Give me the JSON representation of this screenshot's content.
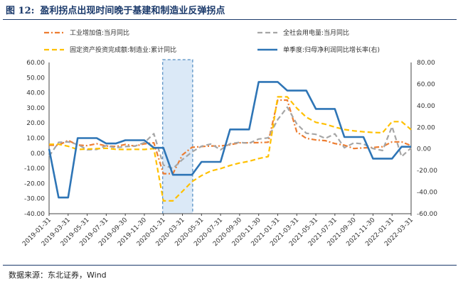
{
  "figure": {
    "label": "图 12:",
    "title": "盈利拐点出现时间晚于基建和制造业反弹拐点",
    "source": "数据来源：东北证券，Wind"
  },
  "chart_data": {
    "type": "line",
    "x": [
      "2019-01-31",
      "2019-02-28",
      "2019-03-31",
      "2019-04-30",
      "2019-05-31",
      "2019-06-30",
      "2019-07-31",
      "2019-08-31",
      "2019-09-30",
      "2019-10-31",
      "2019-11-30",
      "2019-12-31",
      "2020-01-31",
      "2020-02-29",
      "2020-03-31",
      "2020-04-30",
      "2020-05-31",
      "2020-06-30",
      "2020-07-31",
      "2020-08-31",
      "2020-09-30",
      "2020-10-31",
      "2020-11-30",
      "2020-12-31",
      "2021-01-31",
      "2021-02-28",
      "2021-03-31",
      "2021-04-30",
      "2021-05-31",
      "2021-06-30",
      "2021-07-31",
      "2021-08-31",
      "2021-09-30",
      "2021-10-31",
      "2021-11-30",
      "2021-12-31",
      "2022-01-31",
      "2022-02-28",
      "2022-03-31"
    ],
    "x_tick_labels": [
      "2019-01-31",
      "2019-03-31",
      "2019-05-31",
      "2019-07-31",
      "2019-09-30",
      "2019-11-30",
      "2020-01-31",
      "2020-03-31",
      "2020-05-31",
      "2020-07-31",
      "2020-09-30",
      "2020-11-30",
      "2021-01-31",
      "2021-03-31",
      "2021-05-31",
      "2021-07-31",
      "2021-09-30",
      "2021-11-30",
      "2022-01-31",
      "2022-03-31"
    ],
    "y_left": {
      "ylim": [
        -40,
        60
      ],
      "ticks": [
        "-40.00",
        "-30.00",
        "-20.00",
        "-10.00",
        "0.00",
        "10.00",
        "20.00",
        "30.00",
        "40.00",
        "50.00",
        "60.00"
      ]
    },
    "y_right": {
      "ylim": [
        -60,
        80
      ],
      "ticks": [
        "-60.00",
        "-40.00",
        "-20.00",
        "0.00",
        "20.00",
        "40.00",
        "60.00",
        "80.00"
      ]
    },
    "highlight": {
      "from": "2020-01-31",
      "to": "2020-04-30"
    },
    "grid": false,
    "legend": "top",
    "series": [
      {
        "name": "工业增加值:当月同比",
        "axis": "left",
        "color": "#ed7d31",
        "style": "dashdot",
        "values": [
          5.3,
          5.3,
          8.5,
          5.4,
          5.0,
          6.3,
          4.8,
          4.4,
          5.8,
          4.7,
          6.2,
          6.9,
          -13.5,
          -13.5,
          -1.1,
          3.9,
          4.4,
          4.8,
          4.8,
          5.6,
          6.9,
          6.9,
          7.0,
          7.3,
          35.1,
          35.1,
          14.1,
          9.8,
          8.8,
          8.3,
          6.4,
          5.3,
          3.1,
          3.5,
          3.8,
          4.3,
          7.5,
          7.5,
          5.0
        ]
      },
      {
        "name": "全社会用电量:当月同比",
        "axis": "left",
        "color": "#a6a6a6",
        "style": "dash",
        "values": [
          -2.0,
          7.2,
          7.5,
          5.8,
          2.3,
          2.5,
          5.0,
          3.6,
          4.4,
          4.7,
          7.0,
          12.9,
          -7.8,
          -10.1,
          -4.2,
          0.8,
          4.6,
          6.1,
          2.3,
          6.3,
          7.2,
          6.6,
          9.4,
          10.2,
          22.3,
          30.4,
          19.4,
          13.2,
          12.5,
          9.8,
          12.8,
          3.6,
          6.8,
          6.1,
          3.1,
          1.8,
          17.6,
          -2.2,
          3.5
        ]
      },
      {
        "name": "固定资产投资完成额:制造业:累计同比",
        "axis": "left",
        "color": "#ffc000",
        "style": "dash",
        "values": [
          5.9,
          5.9,
          4.6,
          2.5,
          2.7,
          3.0,
          3.3,
          2.6,
          2.5,
          2.6,
          2.5,
          3.1,
          -31.5,
          -31.5,
          -25.2,
          -18.8,
          -14.8,
          -11.7,
          -10.2,
          -8.1,
          -6.5,
          -5.3,
          -3.5,
          -2.2,
          37.3,
          37.3,
          29.8,
          23.8,
          20.4,
          19.2,
          17.3,
          15.7,
          14.8,
          14.2,
          13.7,
          13.5,
          20.9,
          20.9,
          15.6
        ]
      },
      {
        "name": "单季度:归母净利润同比增长率(右)",
        "axis": "right",
        "color": "#2e75b6",
        "style": "solid",
        "values": [
          0,
          -45,
          -45,
          10,
          10,
          10,
          5,
          5,
          8,
          8,
          8,
          1,
          1,
          -24,
          -24,
          -24,
          -12,
          -12,
          -12,
          18,
          18,
          18,
          62,
          62,
          62,
          54,
          54,
          54,
          37,
          37,
          37,
          11,
          11,
          11,
          -9,
          -9,
          -9,
          2,
          2
        ]
      }
    ]
  }
}
